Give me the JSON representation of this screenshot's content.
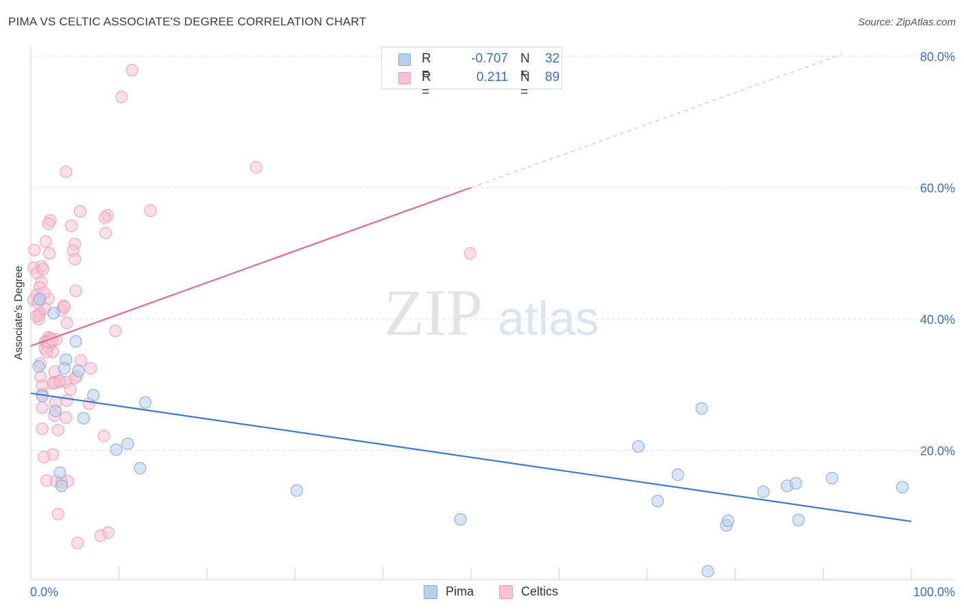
{
  "title": "PIMA VS CELTIC ASSOCIATE'S DEGREE CORRELATION CHART",
  "source": "Source: ZipAtlas.com",
  "watermark": {
    "zip": "ZIP",
    "atlas": "atlas"
  },
  "legend": {
    "rows": [
      {
        "r_label": "R =",
        "r_value": "-0.707",
        "n_label": "N =",
        "n_value": "32"
      },
      {
        "r_label": "R =",
        "r_value": "0.211",
        "n_label": "N =",
        "n_value": "89"
      }
    ]
  },
  "bottom_legend": [
    "Pima",
    "Celtics"
  ],
  "colors": {
    "pima_fill": "#b7d0f0",
    "pima_stroke": "#7ea6de",
    "pima_line": "#3a78d4",
    "celtics_fill": "#f7c3d3",
    "celtics_stroke": "#ee9ab5",
    "celtics_line": "#e2688f",
    "grid": "#dedede",
    "axis_label": "#3a6fbf"
  },
  "chart_data": {
    "type": "scatter",
    "title": "PIMA VS CELTIC ASSOCIATE'S DEGREE CORRELATION CHART",
    "xlabel": "",
    "ylabel": "Associate's Degree",
    "xlim": [
      0,
      100
    ],
    "ylim": [
      0,
      80
    ],
    "x_tick_labels": [
      "0.0%",
      "100.0%"
    ],
    "y_tick_labels": [
      "20.0%",
      "40.0%",
      "60.0%",
      "80.0%"
    ],
    "y_ticks": [
      20,
      40,
      60,
      80
    ],
    "grid": true,
    "series": [
      {
        "name": "Pima",
        "points": [
          [
            0.9,
            32.8
          ],
          [
            1.3,
            28.3
          ],
          [
            2.6,
            40.9
          ],
          [
            2.8,
            26.0
          ],
          [
            3.3,
            16.6
          ],
          [
            3.5,
            14.6
          ],
          [
            4.0,
            33.8
          ],
          [
            5.1,
            36.6
          ],
          [
            6.0,
            24.9
          ],
          [
            5.4,
            32.1
          ],
          [
            7.1,
            28.4
          ],
          [
            9.7,
            20.1
          ],
          [
            11.0,
            21.0
          ],
          [
            12.4,
            17.3
          ],
          [
            13.0,
            27.3
          ],
          [
            30.2,
            13.9
          ],
          [
            48.8,
            9.5
          ],
          [
            69.0,
            20.6
          ],
          [
            71.2,
            12.3
          ],
          [
            73.5,
            16.3
          ],
          [
            76.2,
            26.4
          ],
          [
            79.0,
            8.6
          ],
          [
            79.2,
            9.3
          ],
          [
            83.2,
            13.7
          ],
          [
            85.9,
            14.6
          ],
          [
            86.9,
            15.0
          ],
          [
            87.2,
            9.4
          ],
          [
            91.0,
            15.8
          ],
          [
            99.0,
            14.4
          ],
          [
            76.9,
            1.6
          ],
          [
            1.0,
            43.0
          ],
          [
            3.8,
            32.5
          ]
        ]
      },
      {
        "name": "Celtics",
        "points": [
          [
            11.5,
            77.9
          ],
          [
            10.3,
            73.8
          ],
          [
            4.0,
            62.4
          ],
          [
            25.6,
            63.1
          ],
          [
            5.6,
            56.4
          ],
          [
            13.6,
            56.5
          ],
          [
            8.7,
            55.8
          ],
          [
            8.4,
            55.4
          ],
          [
            2.2,
            55.0
          ],
          [
            2.0,
            54.5
          ],
          [
            4.6,
            54.2
          ],
          [
            8.5,
            53.1
          ],
          [
            1.7,
            51.8
          ],
          [
            5.0,
            51.4
          ],
          [
            0.4,
            50.5
          ],
          [
            4.8,
            50.4
          ],
          [
            2.1,
            50.0
          ],
          [
            49.9,
            50.0
          ],
          [
            5.0,
            49.1
          ],
          [
            1.2,
            48.0
          ],
          [
            0.3,
            47.8
          ],
          [
            0.7,
            47.0
          ],
          [
            1.2,
            45.6
          ],
          [
            1.0,
            44.8
          ],
          [
            5.1,
            44.3
          ],
          [
            0.7,
            43.7
          ],
          [
            2.0,
            43.1
          ],
          [
            1.0,
            43.0
          ],
          [
            0.3,
            42.9
          ],
          [
            3.7,
            42.0
          ],
          [
            1.6,
            41.6
          ],
          [
            3.5,
            41.3
          ],
          [
            1.0,
            40.9
          ],
          [
            0.9,
            40.5
          ],
          [
            0.9,
            40.0
          ],
          [
            4.1,
            39.4
          ],
          [
            9.6,
            38.2
          ],
          [
            2.0,
            37.2
          ],
          [
            2.2,
            37.1
          ],
          [
            1.7,
            36.6
          ],
          [
            1.6,
            36.5
          ],
          [
            2.3,
            36.3
          ],
          [
            2.0,
            35.8
          ],
          [
            1.6,
            35.5
          ],
          [
            2.5,
            35.0
          ],
          [
            1.8,
            35.0
          ],
          [
            5.7,
            33.7
          ],
          [
            1.1,
            33.2
          ],
          [
            6.8,
            32.5
          ],
          [
            2.7,
            32.0
          ],
          [
            5.2,
            31.3
          ],
          [
            1.1,
            31.2
          ],
          [
            3.3,
            30.5
          ],
          [
            4.0,
            30.4
          ],
          [
            2.6,
            30.4
          ],
          [
            2.8,
            30.3
          ],
          [
            2.5,
            30.2
          ],
          [
            1.3,
            29.8
          ],
          [
            4.5,
            29.3
          ],
          [
            1.3,
            28.6
          ],
          [
            4.1,
            27.6
          ],
          [
            2.8,
            27.3
          ],
          [
            6.6,
            27.1
          ],
          [
            1.3,
            26.5
          ],
          [
            2.7,
            25.3
          ],
          [
            4.0,
            25.0
          ],
          [
            1.3,
            23.3
          ],
          [
            3.1,
            23.1
          ],
          [
            8.3,
            22.2
          ],
          [
            2.5,
            19.4
          ],
          [
            1.5,
            19.0
          ],
          [
            1.8,
            15.4
          ],
          [
            4.2,
            15.3
          ],
          [
            2.9,
            15.3
          ],
          [
            3.5,
            15.1
          ],
          [
            3.1,
            10.3
          ],
          [
            8.8,
            7.5
          ],
          [
            7.9,
            7.0
          ],
          [
            5.3,
            5.9
          ],
          [
            0.8,
            42.5
          ],
          [
            1.5,
            44.0
          ],
          [
            2.9,
            36.9
          ],
          [
            3.8,
            41.8
          ],
          [
            0.6,
            40.4
          ],
          [
            3.3,
            30.6
          ],
          [
            5.0,
            31.0
          ],
          [
            1.9,
            36.5
          ],
          [
            2.4,
            36.8
          ],
          [
            1.4,
            47.6
          ]
        ]
      }
    ],
    "trend_lines": [
      {
        "name": "Pima",
        "x": [
          0,
          100
        ],
        "y": [
          28.7,
          9.2
        ],
        "style": "solid"
      },
      {
        "name": "Celtics",
        "x": [
          0,
          50
        ],
        "y": [
          35.9,
          60.0
        ],
        "style": "solid"
      },
      {
        "name": "Celtics",
        "x": [
          50,
          100
        ],
        "y": [
          60.0,
          84.1
        ],
        "style": "dashed"
      }
    ],
    "legend_position": "top-center"
  }
}
